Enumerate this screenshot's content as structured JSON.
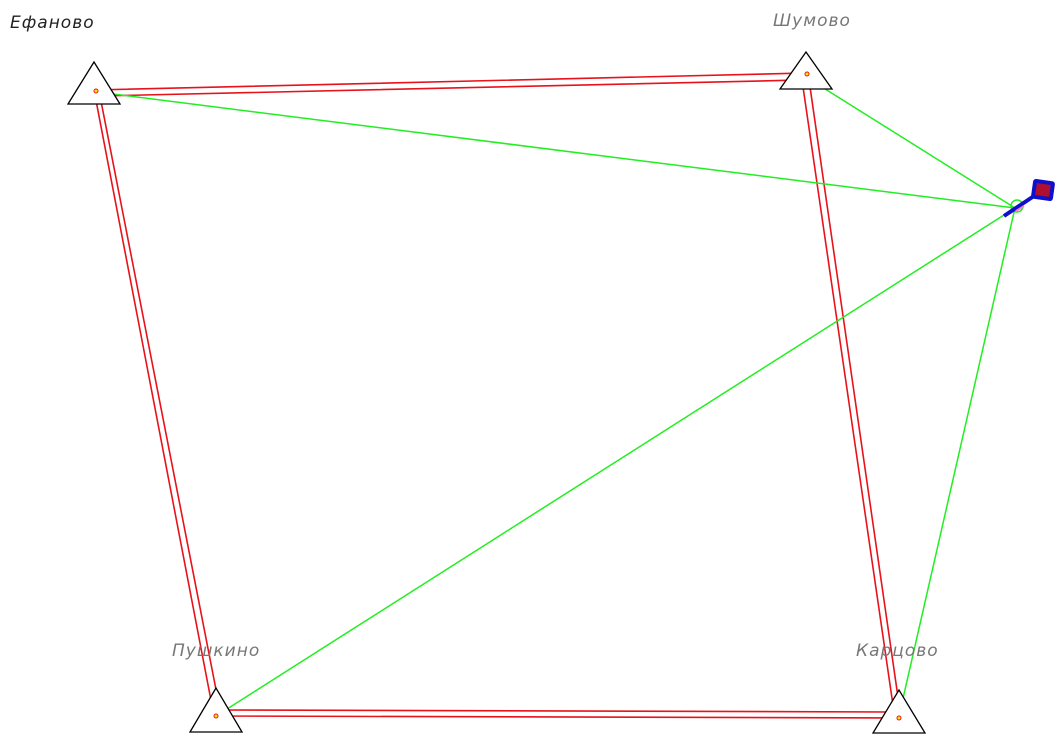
{
  "colors": {
    "traverse": "#e8121b",
    "sight_line": "#22ee22",
    "marker": "#000000",
    "instrument_frame": "#1010cc",
    "instrument_screen": "#b01030",
    "label_dark": "#222222",
    "label_gray": "#777777"
  },
  "stations": {
    "efanovo": {
      "name": "Ефаново"
    },
    "shumovo": {
      "name": "Шумово"
    },
    "pushkino": {
      "name": "Пушкино"
    },
    "kartsovo": {
      "name": "Карцово"
    }
  },
  "icons": {
    "triangle": "triangle-marker-icon",
    "instrument": "total-station-icon"
  }
}
